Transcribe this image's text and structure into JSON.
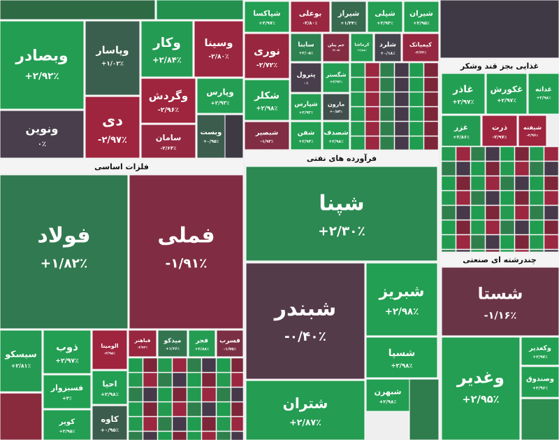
{
  "chart_data": {
    "type": "treemap",
    "groups": [
      "فلزات اساسی",
      "فرآورده های نفتی",
      "غذایی بجز قند وشکر",
      "چندرشته ای صنعتی"
    ],
    "categories": [
      "وبصادر",
      "ونوین",
      "وپاسار",
      "دی",
      "وکار",
      "وسینا",
      "وگردش",
      "وپارس",
      "سامان",
      "وبست",
      "شپاکسا",
      "بوعلی",
      "شیراز",
      "شپلی",
      "شیران",
      "نوری",
      "سابنا",
      "جم پیلن",
      "کرماشا",
      "شلرد",
      "کیمیاتک",
      "پترول",
      "شگستر",
      "شکلر",
      "شپارس",
      "مارون",
      "شبصیر",
      "شفن",
      "شصدف",
      "فولاد",
      "فملی",
      "شپنا",
      "شبندر",
      "شبریز",
      "شسپا",
      "شتران",
      "شبهرن",
      "سیسکو",
      "ذوب",
      "فسبزوار",
      "کویر",
      "الومینا",
      "احیا",
      "کاوه",
      "فباهنر",
      "میدکو",
      "فجر",
      "فسرب",
      "غاذر",
      "غکورش",
      "غدانه",
      "غزر",
      "ذرت",
      "شیفته",
      "شستا",
      "وغدیر",
      "وکغدیر",
      "وصندوق"
    ],
    "values": [
      2.92,
      0,
      1.02,
      -2.97,
      2.84,
      -2.8,
      -2.96,
      2.93,
      -2.64,
      0.95,
      2.97,
      -2.8,
      1.34,
      2.93,
      2.95,
      -2.72,
      2.05,
      -2.05,
      2.88,
      0.18,
      -2.62,
      0,
      2.93,
      2.98,
      2.92,
      0.54,
      -1.93,
      2.93,
      2.98,
      1.82,
      -1.91,
      2.3,
      -0.4,
      2.98,
      2.98,
      2.87,
      2.98,
      2.81,
      2.97,
      3,
      2.95,
      -2.95,
      2.98,
      0.95,
      -2.72,
      1.66,
      2.88,
      -1.75,
      2.97,
      2.97,
      2.98,
      2.86,
      -2.97,
      -2.96,
      -1.16,
      2.95,
      2.97,
      2.96
    ],
    "value_labels": [
      "+۲/۹۲٪",
      "۰٪",
      "+۱/۰۲٪",
      "-۲/۹۷٪",
      "+۲/۸۴٪",
      "-۲/۸۰٪",
      "-۲/۹۶٪",
      "+۲/۹۳٪",
      "-۲/۶۴٪",
      "+۰/۹۵٪",
      "+۲/۹۷٪",
      "-۲/۸۰٪",
      "+۱/۳۴٪",
      "+۲/۹۳٪",
      "+۲/۹۵٪",
      "-۲/۷۲٪",
      "+۲/۰۵٪",
      "-۲/۰۵٪",
      "+۲/۸۸٪",
      "+۰/۱۸٪",
      "-۲/۶۲٪",
      "۰٪",
      "+۲/۹۳٪",
      "+۲/۹۸٪",
      "+۲/۹۲٪",
      "+۰/۵۴٪",
      "-۱/۹۳٪",
      "+۲/۹۳٪",
      "+۲/۹۸٪",
      "+۱/۸۲٪",
      "-۱/۹۱٪",
      "+۲/۳۰٪",
      "-۰/۴۰٪",
      "+۲/۹۸٪",
      "+۲/۹۸٪",
      "+۲/۸۷٪",
      "+۲/۹۸٪",
      "+۲/۸۱٪",
      "+۲/۹۷٪",
      "+۳٪",
      "+۲/۹۵٪",
      "-۲/۹۵٪",
      "+۲/۹۸٪",
      "+۰/۹۵٪",
      "-۲/۷۲٪",
      "+۱/۶۶٪",
      "+۲/۸۸٪",
      "-۱/۷۵٪",
      "+۲/۹۷٪",
      "+۲/۹۷٪",
      "+۲/۹۸٪",
      "+۲/۸۶٪",
      "-۲/۹۷٪",
      "-۲/۹۶٪",
      "-۱/۱۶٪",
      "+۲/۹۵٪",
      "+۲/۹۷٪",
      "+۲/۹۶٪"
    ]
  }
}
